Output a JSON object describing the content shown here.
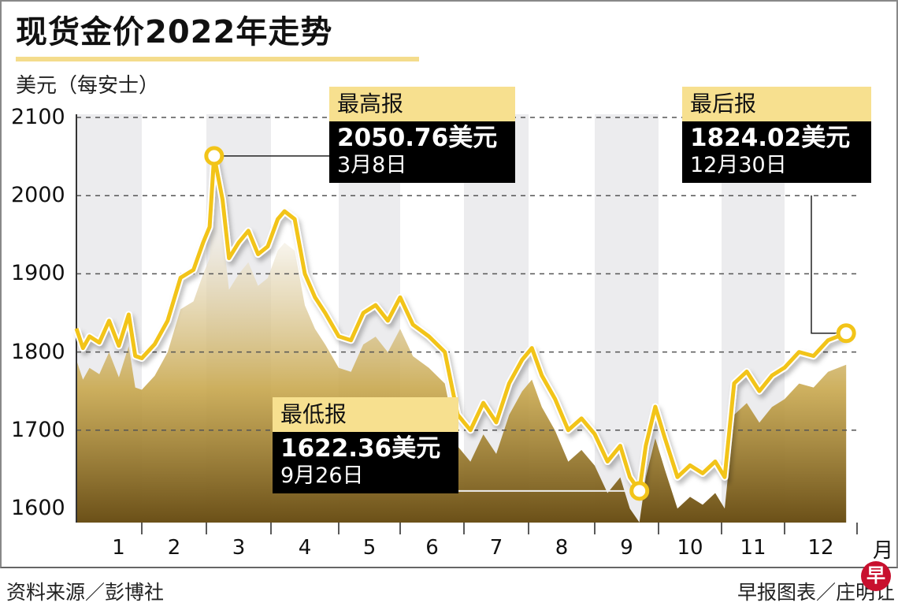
{
  "header": {
    "title": "现货金价2022年走势",
    "unit_label": "美元（每安士）"
  },
  "axis": {
    "y_ticks": [
      "2100",
      "2000",
      "1900",
      "1800",
      "1700",
      "1600"
    ],
    "x_ticks": [
      "1",
      "2",
      "3",
      "4",
      "5",
      "6",
      "7",
      "8",
      "9",
      "10",
      "11",
      "12"
    ],
    "x_unit": "月"
  },
  "callouts": {
    "high": {
      "label": "最高报",
      "value": "2050.76美元",
      "date": "3月8日"
    },
    "low": {
      "label": "最低报",
      "value": "1622.36美元",
      "date": "9月26日"
    },
    "last": {
      "label": "最后报",
      "value": "1824.02美元",
      "date": "12月30日"
    }
  },
  "footer": {
    "source": "资料来源／彭博社",
    "credit": "早报图表／庄明让",
    "logo_char": "早"
  },
  "colors": {
    "line": "#f2c419",
    "callout_head": "#f7e08f",
    "callout_body": "#000000",
    "band": "#ececee",
    "logo": "#c8102e"
  },
  "chart_data": {
    "type": "line",
    "title": "现货金价2022年走势",
    "ylabel": "美元（每安士）",
    "xlabel": "月",
    "ylim": [
      1600,
      2100
    ],
    "y_ticks": [
      1600,
      1700,
      1800,
      1900,
      2000,
      2100
    ],
    "x_categories": [
      "1",
      "2",
      "3",
      "4",
      "5",
      "6",
      "7",
      "8",
      "9",
      "10",
      "11",
      "12"
    ],
    "grid": "horizontal dashed",
    "series": [
      {
        "name": "现货金价 (美元/安士)",
        "x_month": [
          1.0,
          1.1,
          1.2,
          1.35,
          1.5,
          1.65,
          1.8,
          1.9,
          2.0,
          2.2,
          2.4,
          2.6,
          2.8,
          2.95,
          3.05,
          3.12,
          3.25,
          3.35,
          3.5,
          3.65,
          3.8,
          3.95,
          4.1,
          4.2,
          4.35,
          4.5,
          4.65,
          4.8,
          5.0,
          5.2,
          5.4,
          5.6,
          5.8,
          6.0,
          6.2,
          6.45,
          6.7,
          6.9,
          7.1,
          7.3,
          7.5,
          7.7,
          7.9,
          8.05,
          8.2,
          8.4,
          8.6,
          8.8,
          9.0,
          9.2,
          9.4,
          9.55,
          9.7,
          9.8,
          9.95,
          10.1,
          10.3,
          10.5,
          10.7,
          10.9,
          11.05,
          11.2,
          11.4,
          11.6,
          11.8,
          12.0,
          12.2,
          12.4,
          12.6,
          12.85
        ],
        "values": [
          1830,
          1805,
          1820,
          1812,
          1840,
          1808,
          1848,
          1795,
          1792,
          1810,
          1840,
          1895,
          1905,
          1940,
          1960,
          2050.76,
          1995,
          1920,
          1940,
          1955,
          1925,
          1935,
          1970,
          1980,
          1970,
          1900,
          1870,
          1850,
          1820,
          1815,
          1850,
          1860,
          1840,
          1870,
          1835,
          1820,
          1800,
          1720,
          1700,
          1735,
          1710,
          1760,
          1790,
          1805,
          1770,
          1740,
          1700,
          1715,
          1695,
          1660,
          1680,
          1640,
          1622.36,
          1680,
          1730,
          1690,
          1640,
          1655,
          1645,
          1660,
          1640,
          1760,
          1775,
          1750,
          1770,
          1780,
          1800,
          1795,
          1815,
          1824.02
        ]
      }
    ],
    "annotations": [
      {
        "label": "最高报",
        "value": 2050.76,
        "date": "3月8日"
      },
      {
        "label": "最低报",
        "value": 1622.36,
        "date": "9月26日"
      },
      {
        "label": "最后报",
        "value": 1824.02,
        "date": "12月30日"
      }
    ],
    "source": "资料来源／彭博社",
    "credit": "早报图表／庄明让"
  }
}
